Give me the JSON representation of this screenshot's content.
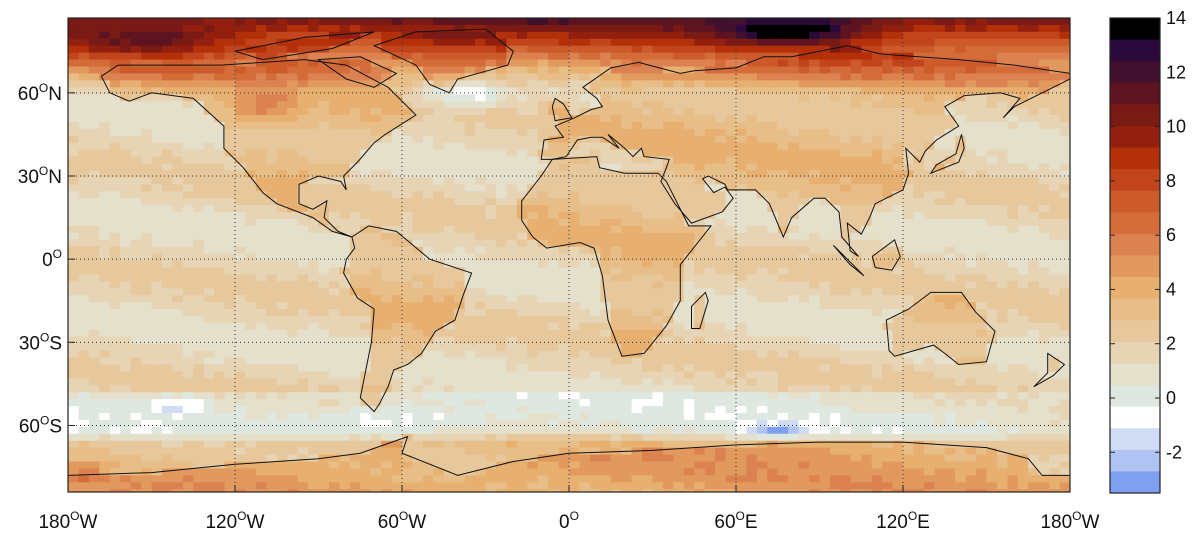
{
  "map": {
    "projection": "equirectangular",
    "lon_range": [
      -180,
      180
    ],
    "lat_range": [
      -84,
      87
    ],
    "grid": "dotted",
    "x_ticks": [
      {
        "value": -180,
        "num": "180",
        "deg": "O",
        "hem": "W"
      },
      {
        "value": -120,
        "num": "120",
        "deg": "O",
        "hem": "W"
      },
      {
        "value": -60,
        "num": "60",
        "deg": "O",
        "hem": "W"
      },
      {
        "value": 0,
        "num": "0",
        "deg": "O",
        "hem": ""
      },
      {
        "value": 60,
        "num": "60",
        "deg": "O",
        "hem": "E"
      },
      {
        "value": 120,
        "num": "120",
        "deg": "O",
        "hem": "E"
      },
      {
        "value": 180,
        "num": "180",
        "deg": "O",
        "hem": "W"
      }
    ],
    "y_ticks": [
      {
        "value": 60,
        "num": "60",
        "deg": "O",
        "hem": "N"
      },
      {
        "value": 30,
        "num": "30",
        "deg": "O",
        "hem": "N"
      },
      {
        "value": 0,
        "num": "0",
        "deg": "O",
        "hem": ""
      },
      {
        "value": -30,
        "num": "30",
        "deg": "O",
        "hem": "S"
      },
      {
        "value": -60,
        "num": "60",
        "deg": "O",
        "hem": "S"
      }
    ]
  },
  "colorbar": {
    "range": [
      -3.5,
      14
    ],
    "ticks": [
      "14",
      "12",
      "10",
      "8",
      "6",
      "4",
      "2",
      "0",
      "-2"
    ],
    "tick_values": [
      14,
      12,
      10,
      8,
      6,
      4,
      2,
      0,
      -2
    ],
    "colors_top_to_bottom": [
      "#000000",
      "#2a0a3a",
      "#40102e",
      "#5e1420",
      "#7a1a14",
      "#931f0f",
      "#b3300a",
      "#c2441c",
      "#cc5a2a",
      "#d46c3a",
      "#dc8250",
      "#e2995e",
      "#e8b070",
      "#e8be88",
      "#e6c89c",
      "#e6d4b4",
      "#e4e0cc",
      "#dfe8e0",
      "#ffffff",
      "#d0dcf4",
      "#b0c4f4",
      "#7fa0f0"
    ]
  }
}
